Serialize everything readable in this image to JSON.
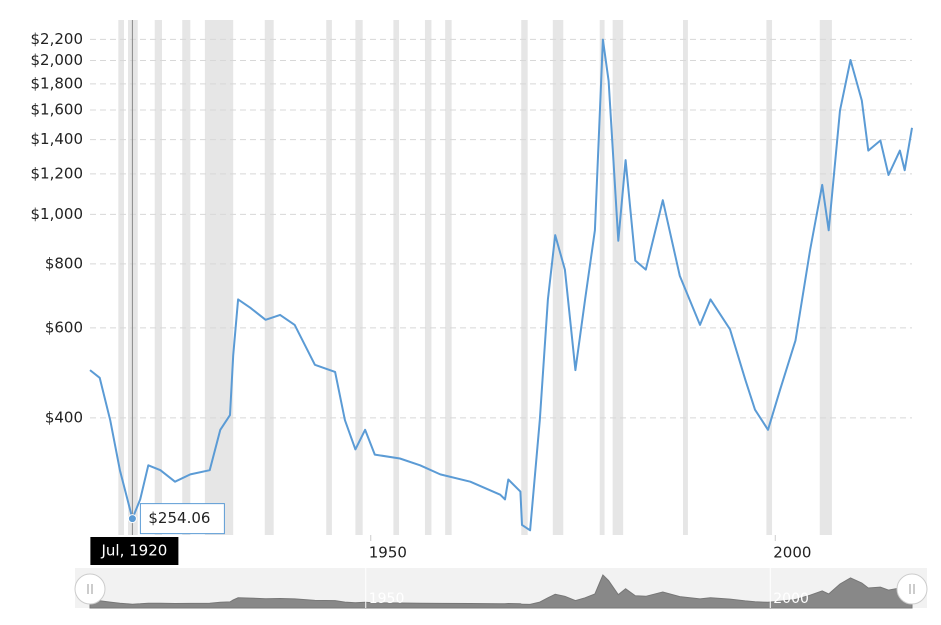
{
  "chart_data": {
    "type": "line",
    "log_y": true,
    "grid": true,
    "xlim": [
      1915.3,
      2016.9
    ],
    "ylim": [
      236,
      2400
    ],
    "xticks": [
      1950,
      2000
    ],
    "yticks": [
      {
        "value": 400,
        "label": "$400"
      },
      {
        "value": 600,
        "label": "$600"
      },
      {
        "value": 800,
        "label": "$800"
      },
      {
        "value": 1000,
        "label": "$1,000"
      },
      {
        "value": 1200,
        "label": "$1,200"
      },
      {
        "value": 1400,
        "label": "$1,400"
      },
      {
        "value": 1600,
        "label": "$1,600"
      },
      {
        "value": 1800,
        "label": "$1,800"
      },
      {
        "value": 2000,
        "label": "$2,000"
      },
      {
        "value": 2200,
        "label": "$2,200"
      }
    ],
    "recession_color": "#e6e6e6",
    "recessions": [
      [
        1918.8,
        1919.5
      ],
      [
        1920.0,
        1921.2
      ],
      [
        1923.3,
        1924.2
      ],
      [
        1926.7,
        1927.7
      ],
      [
        1929.5,
        1933.0
      ],
      [
        1936.9,
        1938.0
      ],
      [
        1944.5,
        1945.2
      ],
      [
        1948.1,
        1949.0
      ],
      [
        1952.8,
        1953.5
      ],
      [
        1956.7,
        1957.5
      ],
      [
        1959.2,
        1960.0
      ],
      [
        1968.6,
        1969.4
      ],
      [
        1972.5,
        1973.8
      ],
      [
        1978.3,
        1978.9
      ],
      [
        1979.9,
        1981.2
      ],
      [
        1988.6,
        1989.2
      ],
      [
        1998.9,
        1999.6
      ],
      [
        2005.5,
        2007.0
      ]
    ],
    "series": [
      {
        "color": "#5b9bd5",
        "x": [
          1915.3,
          1916.5,
          1917.8,
          1919.0,
          1920.54,
          1921.5,
          1922.5,
          1924.0,
          1925.8,
          1927.7,
          1930.1,
          1931.4,
          1932.6,
          1933.0,
          1933.6,
          1935.1,
          1937.0,
          1938.8,
          1940.6,
          1943.1,
          1945.6,
          1946.8,
          1948.1,
          1949.3,
          1950.5,
          1953.6,
          1956.1,
          1958.6,
          1962.3,
          1966.0,
          1966.6,
          1967.0,
          1968.5,
          1968.7,
          1969.7,
          1970.9,
          1971.9,
          1972.8,
          1974.0,
          1975.3,
          1976.5,
          1977.7,
          1978.7,
          1979.4,
          1980.6,
          1981.5,
          1982.7,
          1984.0,
          1986.1,
          1988.2,
          1990.7,
          1992.0,
          1994.4,
          1996.3,
          1997.5,
          1999.1,
          2000.6,
          2002.5,
          2004.3,
          2005.8,
          2006.6,
          2008.0,
          2009.3,
          2010.7,
          2011.5,
          2013.0,
          2014.0,
          2015.4,
          2016.0,
          2016.9
        ],
        "values": [
          496,
          479,
          396,
          316,
          254.06,
          277,
          323,
          316,
          300,
          310,
          316,
          379,
          405,
          530,
          682,
          657,
          622,
          636,
          608,
          508,
          492,
          396,
          347,
          379,
          339,
          333,
          323,
          310,
          300,
          283,
          277,
          303,
          287,
          247,
          241,
          396,
          682,
          911,
          780,
          496,
          682,
          931,
          2197,
          1826,
          888,
          1277,
          812,
          780,
          1066,
          758,
          608,
          682,
          596,
          475,
          415,
          379,
          454,
          567,
          852,
          1142,
          931,
          1597,
          2004,
          1670,
          1333,
          1395,
          1194,
          1333,
          1220,
          1477
        ]
      }
    ],
    "tooltip": {
      "x": 1920.54,
      "value": 254.06,
      "x_label": "Jul, 1920",
      "value_label": "$254.06"
    }
  }
}
